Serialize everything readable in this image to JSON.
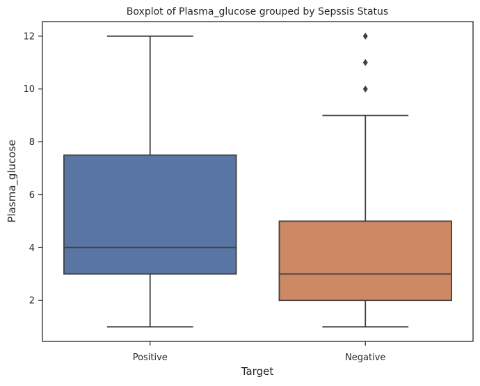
{
  "chart_data": {
    "type": "boxplot",
    "title": "Boxplot of Plasma_glucose grouped by Sepssis Status",
    "xlabel": "Target",
    "ylabel": "Plasma_glucose",
    "ylim": [
      0.45,
      12.55
    ],
    "yticks": [
      2,
      4,
      6,
      8,
      10,
      12
    ],
    "grid": false,
    "categories": [
      "Positive",
      "Negative"
    ],
    "boxes": [
      {
        "category": "Positive",
        "color": "#5975a4",
        "whisker_low": 1,
        "q1": 3,
        "median": 4,
        "q3": 7.5,
        "whisker_high": 12,
        "outliers": []
      },
      {
        "category": "Negative",
        "color": "#cc8963",
        "whisker_low": 1,
        "q1": 2,
        "median": 3,
        "q3": 5,
        "whisker_high": 9,
        "outliers": [
          10,
          11,
          12
        ]
      }
    ]
  }
}
